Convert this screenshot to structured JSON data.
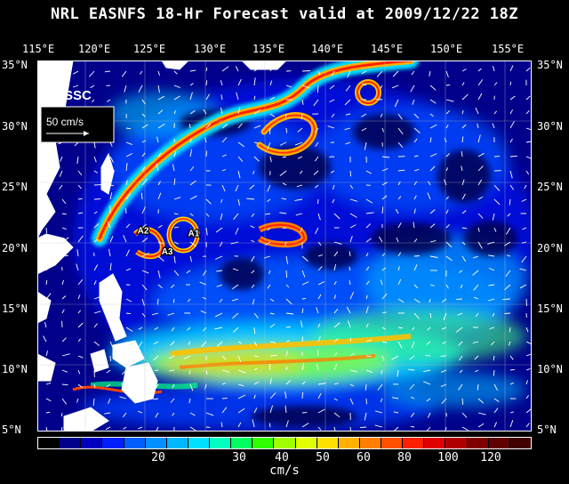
{
  "title": "NRL EASNFS  18-Hr Forecast valid at 2009/12/22 18Z",
  "product": "SSC",
  "scale_label": "50 cm/s",
  "lon_labels": [
    "115°E",
    "120°E",
    "125°E",
    "130°E",
    "135°E",
    "140°E",
    "145°E",
    "150°E",
    "155°E"
  ],
  "lat_labels": [
    "35°N",
    "30°N",
    "25°N",
    "20°N",
    "15°N",
    "10°N",
    "5°N"
  ],
  "eddies": [
    {
      "name": "A1",
      "lon": 127.5,
      "lat": 20.8
    },
    {
      "name": "A2",
      "lon": 123.3,
      "lat": 21.0
    },
    {
      "name": "A3",
      "lon": 125.3,
      "lat": 19.3
    }
  ],
  "map_extent": {
    "lon_min": 115,
    "lon_max": 156,
    "lat_min": 5,
    "lat_max": 35
  },
  "colorbar": {
    "unit": "cm/s",
    "tick_labels": [
      "20",
      "30",
      "40",
      "50",
      "60",
      "80",
      "100",
      "120"
    ],
    "colors": [
      "#000000",
      "#00008b",
      "#0000c0",
      "#0020ff",
      "#0060ff",
      "#0090ff",
      "#00b8ff",
      "#00e0ff",
      "#00ffc0",
      "#00ff60",
      "#30ff00",
      "#a0ff00",
      "#e0ff00",
      "#ffe000",
      "#ffb000",
      "#ff8000",
      "#ff5000",
      "#ff2000",
      "#e00000",
      "#b00000",
      "#800000",
      "#600000",
      "#400000"
    ]
  }
}
